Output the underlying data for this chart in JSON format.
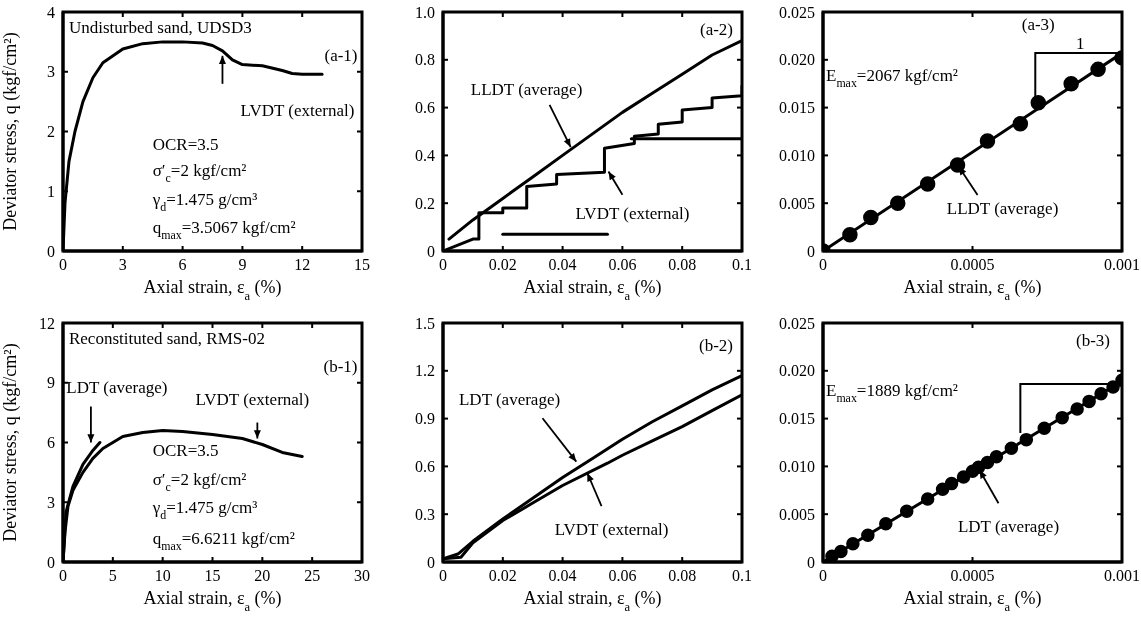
{
  "chart_data": [
    {
      "type": "line",
      "xlabel": "Axial strain, ε$_{a}$ (%)",
      "ylabel": "Deviator stress, q (kgf/cm²)",
      "xlim": [
        0,
        15
      ],
      "ylim": [
        0,
        4
      ],
      "xticks": [
        0,
        3,
        6,
        9,
        12,
        15
      ],
      "yticks": [
        0,
        1,
        2,
        3,
        4
      ],
      "series": [
        {
          "color": "#000000",
          "x": [
            0,
            0.1,
            0.3,
            0.6,
            1,
            1.5,
            2,
            3,
            4,
            5,
            6,
            7,
            7.5,
            8,
            8.5,
            9,
            10,
            11,
            11.5,
            12,
            13
          ],
          "values": [
            0,
            0.8,
            1.5,
            2.0,
            2.5,
            2.9,
            3.15,
            3.38,
            3.47,
            3.5,
            3.5,
            3.48,
            3.44,
            3.35,
            3.2,
            3.12,
            3.1,
            3.02,
            2.97,
            2.96,
            2.96
          ]
        }
      ],
      "annotations": [
        "Undisturbed sand, UDSD3",
        "(a-1)",
        "OCR=3.5",
        "σ′$_{c}$=2 kgf/cm²",
        "γ$_{d}$=1.475 g/cm³",
        "q$_{max}$=3.5067 kgf/cm²",
        {
          "text": "LVDT (external)",
          "x": 8,
          "y": 3.3
        }
      ]
    },
    {
      "type": "line",
      "xlabel": "Axial strain, ε$_{a}$ (%)",
      "xlim": [
        0,
        0.1
      ],
      "ylim": [
        0,
        1
      ],
      "xticks": [
        0,
        0.02,
        0.04,
        0.06,
        0.08,
        0.1
      ],
      "yticks": [
        0,
        0.2,
        0.4,
        0.6,
        0.8,
        {
          "value": 1,
          "label": "1.0"
        }
      ],
      "series": [
        {
          "color": "#000000",
          "x": [
            0.002,
            0.01,
            0.02,
            0.03,
            0.04,
            0.05,
            0.06,
            0.07,
            0.08,
            0.09,
            0.1
          ],
          "values": [
            0.05,
            0.13,
            0.22,
            0.31,
            0.4,
            0.49,
            0.58,
            0.66,
            0.74,
            0.82,
            0.88
          ]
        },
        {
          "color": "#000000",
          "x": [
            0,
            0.01,
            0.012,
            0.012,
            0.02,
            0.02,
            0.028,
            0.028,
            0.038,
            0.038,
            0.054,
            0.054,
            0.064,
            0.064,
            0.072,
            0.072,
            0.08,
            0.08,
            0.09,
            0.09,
            0.1,
            0.1
          ],
          "values": [
            0,
            0.05,
            0.05,
            0.16,
            0.16,
            0.18,
            0.18,
            0.27,
            0.28,
            0.32,
            0.33,
            0.43,
            0.45,
            0.48,
            0.49,
            0.53,
            0.54,
            0.59,
            0.6,
            0.64,
            0.65,
            0.69
          ]
        },
        {
          "color": "#000000",
          "x": [
            0.02,
            0.055
          ],
          "values": [
            0.07,
            0.07
          ]
        },
        {
          "color": "#000000",
          "x": [
            0.063,
            0.1
          ],
          "values": [
            0.47,
            0.47
          ]
        }
      ],
      "annotations": [
        "(a-2)",
        {
          "text": "LLDT (average)",
          "x": 0.043,
          "y": 0.427
        },
        {
          "text": "LVDT (external)",
          "x": 0.055,
          "y": 0.34
        }
      ]
    },
    {
      "type": "scatter",
      "xlabel": "Axial strain, ε$_{a}$ (%)",
      "xlim": [
        0,
        0.001
      ],
      "ylim": [
        0,
        0.025
      ],
      "xticks": [
        0,
        0.0005,
        0.001
      ],
      "yticks": [
        0,
        0.005,
        {
          "value": 0.01,
          "label": "0.010"
        },
        0.015,
        {
          "value": 0.02,
          "label": "0.020"
        },
        0.025
      ],
      "series": [
        {
          "color": "#000000",
          "marker": "circle",
          "x": [
            0,
            9e-05,
            0.00016,
            0.00025,
            0.00035,
            0.00045,
            0.00055,
            0.00066,
            0.00072,
            0.00083,
            0.00092,
            0.001
          ],
          "values": [
            0,
            0.0017,
            0.0035,
            0.005,
            0.007,
            0.009,
            0.0115,
            0.0133,
            0.0155,
            0.0175,
            0.019,
            0.0202
          ]
        },
        {
          "type": "line",
          "color": "#000000",
          "x": [
            0,
            0.001
          ],
          "values": [
            0,
            0.0207
          ]
        }
      ],
      "annotations": [
        "(a-3)",
        "1",
        "E$_{max}$=2067 kgf/cm²",
        {
          "text": "LLDT (average)",
          "x": 0.00045,
          "y": 0.009
        }
      ]
    },
    {
      "type": "line",
      "xlabel": "Axial strain, ε$_{a}$ (%)",
      "ylabel": "Deviator stress, q (kgf/cm²)",
      "xlim": [
        0,
        30
      ],
      "ylim": [
        0,
        12
      ],
      "xticks": [
        0,
        5,
        10,
        15,
        20,
        25,
        30
      ],
      "yticks": [
        0,
        3,
        6,
        9,
        12
      ],
      "series": [
        {
          "color": "#000000",
          "x": [
            0,
            0.2,
            0.5,
            1,
            2,
            3,
            4,
            5,
            6,
            8,
            10,
            12,
            15,
            18,
            20,
            22,
            24
          ],
          "values": [
            0,
            1.5,
            2.8,
            3.6,
            4.5,
            5.2,
            5.7,
            6.0,
            6.3,
            6.5,
            6.6,
            6.55,
            6.4,
            6.2,
            5.9,
            5.5,
            5.3
          ]
        },
        {
          "color": "#000000",
          "x": [
            0,
            0.3,
            1,
            2,
            3,
            3.7
          ],
          "values": [
            0,
            2.5,
            3.8,
            4.9,
            5.6,
            6.0
          ]
        }
      ],
      "annotations": [
        "Reconstituted sand, RMS-02",
        "(b-1)",
        "OCR=3.5",
        "σ′$_{c}$=2 kgf/cm²",
        "γ$_{d}$=1.475 g/cm³",
        "q$_{max}$=6.6211 kgf/cm²",
        {
          "text": "LDT (average)",
          "x": 2.8,
          "y": 5.9
        },
        {
          "text": "LVDT (external)",
          "x": 19.5,
          "y": 6.1
        }
      ]
    },
    {
      "type": "line",
      "xlabel": "Axial strain, ε$_{a}$ (%)",
      "xlim": [
        0,
        0.1
      ],
      "ylim": [
        0,
        1.5
      ],
      "xticks": [
        0,
        0.02,
        0.04,
        0.06,
        0.08,
        0.1
      ],
      "yticks": [
        0,
        0.3,
        0.6,
        0.9,
        1.2,
        1.5
      ],
      "series": [
        {
          "color": "#000000",
          "x": [
            0,
            0.005,
            0.01,
            0.02,
            0.03,
            0.04,
            0.05,
            0.06,
            0.07,
            0.08,
            0.09,
            0.1
          ],
          "values": [
            0.02,
            0.05,
            0.13,
            0.27,
            0.4,
            0.53,
            0.65,
            0.77,
            0.88,
            0.98,
            1.08,
            1.17
          ]
        },
        {
          "color": "#000000",
          "x": [
            0,
            0.006,
            0.01,
            0.02,
            0.03,
            0.04,
            0.055,
            0.06,
            0.07,
            0.08,
            0.09,
            0.1
          ],
          "values": [
            0.02,
            0.03,
            0.12,
            0.26,
            0.37,
            0.48,
            0.62,
            0.67,
            0.76,
            0.85,
            0.95,
            1.05
          ]
        }
      ],
      "annotations": [
        "(b-2)",
        {
          "text": "LDT (average)",
          "x": 0.045,
          "y": 0.62
        },
        {
          "text": "LVDT (external)",
          "x": 0.048,
          "y": 0.57
        }
      ]
    },
    {
      "type": "scatter",
      "xlabel": "Axial strain, ε$_{a}$ (%)",
      "xlim": [
        0,
        0.001
      ],
      "ylim": [
        0,
        0.025
      ],
      "xticks": [
        0,
        0.0005,
        0.001
      ],
      "yticks": [
        0,
        0.005,
        {
          "value": 0.01,
          "label": "0.010"
        },
        0.015,
        {
          "value": 0.02,
          "label": "0.020"
        },
        0.025
      ],
      "series": [
        {
          "color": "#000000",
          "marker": "circle",
          "x": [
            3e-05,
            6e-05,
            0.0001,
            0.00015,
            0.00021,
            0.00028,
            0.00035,
            0.0004,
            0.00043,
            0.00047,
            0.0005,
            0.00052,
            0.00055,
            0.00058,
            0.00063,
            0.00068,
            0.00074,
            0.0008,
            0.00085,
            0.00089,
            0.00093,
            0.00097,
            0.001
          ],
          "values": [
            0.0006,
            0.0011,
            0.0019,
            0.0028,
            0.004,
            0.0053,
            0.0066,
            0.0076,
            0.0082,
            0.0089,
            0.0095,
            0.0099,
            0.0104,
            0.011,
            0.0119,
            0.0128,
            0.014,
            0.0151,
            0.016,
            0.0168,
            0.0176,
            0.0183,
            0.019
          ]
        },
        {
          "type": "line",
          "color": "#000000",
          "x": [
            0,
            0.001
          ],
          "values": [
            0,
            0.0189
          ]
        }
      ],
      "annotations": [
        "(b-3)",
        "E$_{max}$=1889 kgf/cm²",
        {
          "text": "LDT (average)",
          "x": 0.00052,
          "y": 0.0098
        }
      ]
    }
  ]
}
